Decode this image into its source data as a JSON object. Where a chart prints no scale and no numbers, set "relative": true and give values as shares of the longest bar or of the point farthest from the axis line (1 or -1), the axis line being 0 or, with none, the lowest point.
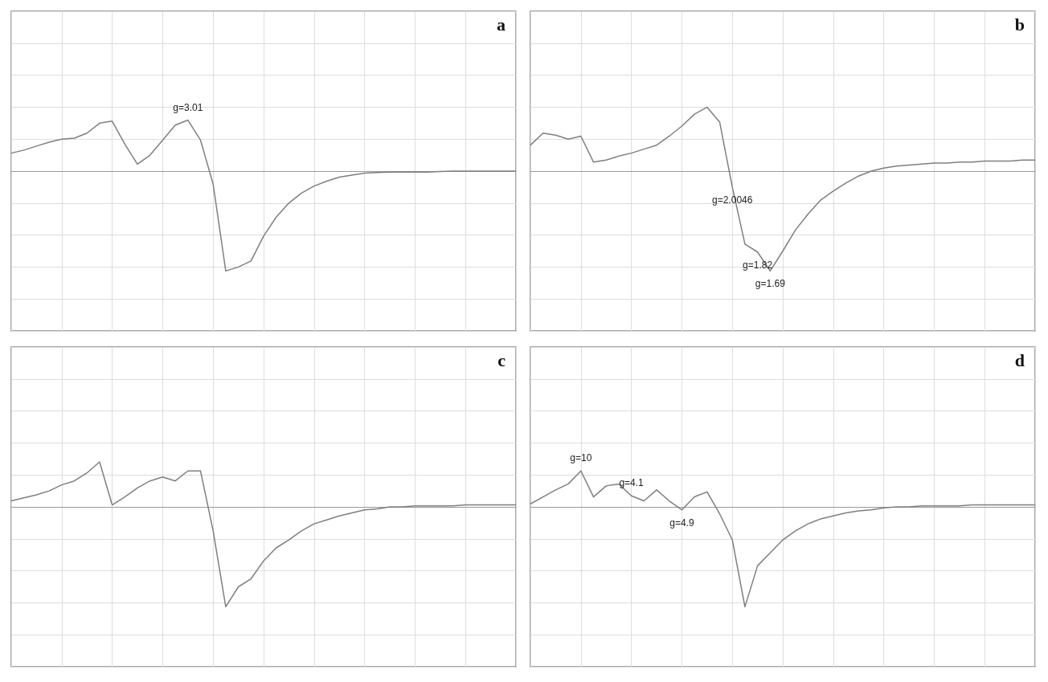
{
  "chart_data": [
    {
      "type": "line",
      "title": "a",
      "relative": true,
      "grid": true,
      "marker": "none",
      "color": "#7f7f7f",
      "categories": [
        null,
        null,
        null,
        null,
        null,
        null,
        null,
        null,
        null,
        null,
        null,
        null,
        null,
        null,
        null,
        null,
        null,
        null,
        null,
        null,
        null,
        null,
        null,
        null,
        null,
        null,
        null,
        null,
        null,
        null,
        null,
        null,
        null,
        null,
        null,
        null,
        null,
        null,
        null,
        null,
        null
      ],
      "values": [
        0.18,
        0.21,
        0.25,
        0.29,
        0.32,
        0.33,
        0.38,
        0.48,
        0.5,
        0.27,
        0.07,
        0.16,
        0.31,
        0.46,
        0.51,
        0.31,
        -0.13,
        -1,
        -0.96,
        -0.9,
        -0.65,
        -0.46,
        -0.32,
        -0.22,
        -0.15,
        -0.1,
        -0.06,
        -0.04,
        -0.02,
        -0.015,
        -0.01,
        -0.01,
        -0.01,
        -0.01,
        -0.005,
        0,
        0,
        0,
        0,
        0,
        0
      ],
      "annotations": [
        {
          "text": "g=3.01",
          "y": 0.51
        }
      ]
    },
    {
      "type": "line",
      "title": "b",
      "relative": true,
      "grid": true,
      "marker": "none",
      "color": "#7f7f7f",
      "categories": [
        null,
        null,
        null,
        null,
        null,
        null,
        null,
        null,
        null,
        null,
        null,
        null,
        null,
        null,
        null,
        null,
        null,
        null,
        null,
        null,
        null,
        null,
        null,
        null,
        null,
        null,
        null,
        null,
        null,
        null,
        null,
        null,
        null,
        null,
        null,
        null,
        null,
        null,
        null,
        null,
        null
      ],
      "values": [
        0.26,
        0.38,
        0.36,
        0.32,
        0.35,
        0.09,
        0.11,
        0.15,
        0.18,
        0.22,
        0.26,
        0.35,
        0.45,
        0.57,
        0.64,
        0.49,
        -0.16,
        -0.73,
        -0.81,
        -1,
        -0.8,
        -0.59,
        -0.43,
        -0.29,
        -0.2,
        -0.12,
        -0.05,
        0,
        0.03,
        0.05,
        0.06,
        0.07,
        0.08,
        0.08,
        0.09,
        0.09,
        0.1,
        0.1,
        0.1,
        0.11,
        0.11
      ],
      "annotations": [
        {
          "text": "g=2.0046",
          "y": -0.16
        },
        {
          "text": "g=1.82",
          "y": -0.81
        },
        {
          "text": "g=1.69",
          "y": -1
        }
      ]
    },
    {
      "type": "line",
      "title": "c",
      "relative": true,
      "grid": true,
      "marker": "none",
      "color": "#7f7f7f",
      "categories": [
        null,
        null,
        null,
        null,
        null,
        null,
        null,
        null,
        null,
        null,
        null,
        null,
        null,
        null,
        null,
        null,
        null,
        null,
        null,
        null,
        null,
        null,
        null,
        null,
        null,
        null,
        null,
        null,
        null,
        null,
        null,
        null,
        null,
        null,
        null,
        null,
        null,
        null,
        null,
        null,
        null
      ],
      "values": [
        0.06,
        0.09,
        0.12,
        0.16,
        0.22,
        0.26,
        0.34,
        0.45,
        0.02,
        0.1,
        0.19,
        0.26,
        0.3,
        0.26,
        0.36,
        0.36,
        -0.24,
        -1,
        -0.8,
        -0.72,
        -0.54,
        -0.41,
        -0.33,
        -0.24,
        -0.17,
        -0.13,
        -0.09,
        -0.06,
        -0.03,
        -0.02,
        0,
        0,
        0.01,
        0.01,
        0.01,
        0.01,
        0.02,
        0.02,
        0.02,
        0.02,
        0.02
      ]
    },
    {
      "type": "line",
      "title": "d",
      "relative": true,
      "grid": true,
      "marker": "none",
      "color": "#7f7f7f",
      "categories": [
        null,
        null,
        null,
        null,
        null,
        null,
        null,
        null,
        null,
        null,
        null,
        null,
        null,
        null,
        null,
        null,
        null,
        null,
        null,
        null,
        null,
        null,
        null,
        null,
        null,
        null,
        null,
        null,
        null,
        null,
        null,
        null,
        null,
        null,
        null,
        null,
        null,
        null,
        null,
        null,
        null
      ],
      "values": [
        0.03,
        0.1,
        0.17,
        0.23,
        0.36,
        0.1,
        0.21,
        0.23,
        0.11,
        0.06,
        0.17,
        0.06,
        -0.03,
        0.1,
        0.15,
        -0.07,
        -0.33,
        -1,
        -0.59,
        -0.46,
        -0.33,
        -0.24,
        -0.17,
        -0.12,
        -0.09,
        -0.06,
        -0.04,
        -0.03,
        -0.01,
        0,
        0,
        0.01,
        0.01,
        0.01,
        0.01,
        0.02,
        0.02,
        0.02,
        0.02,
        0.02,
        0.02
      ],
      "annotations": [
        {
          "text": "g=10",
          "y": 0.36
        },
        {
          "text": "g=4.1",
          "y": 0.11
        },
        {
          "text": "g=4.9",
          "y": -0.03
        }
      ]
    }
  ]
}
